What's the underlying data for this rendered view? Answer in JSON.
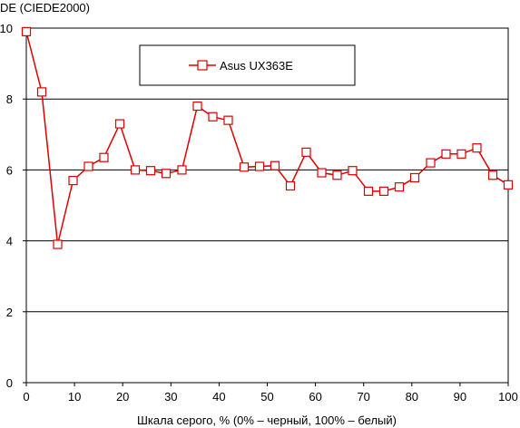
{
  "chart_data": {
    "type": "line",
    "title": "",
    "ylabel": "DE (CIEDE2000)",
    "xlabel": "Шкала серого, % (0% – черный, 100% – белый)",
    "xlim": [
      0,
      100
    ],
    "ylim": [
      0,
      10
    ],
    "xticks": [
      "0",
      "10",
      "20",
      "30",
      "40",
      "50",
      "60",
      "70",
      "80",
      "90",
      "100"
    ],
    "yticks": [
      "0",
      "2",
      "4",
      "6",
      "8",
      "10"
    ],
    "grid": "horizontal",
    "legend_position": "top-center",
    "series": [
      {
        "name": "Asus UX363E",
        "color": "#dd0000",
        "marker": "square",
        "x": [
          0,
          3.2,
          6.5,
          9.7,
          12.9,
          16.1,
          19.4,
          22.6,
          25.8,
          29.0,
          32.3,
          35.5,
          38.7,
          41.9,
          45.2,
          48.4,
          51.6,
          54.8,
          58.1,
          61.3,
          64.5,
          67.7,
          71.0,
          74.2,
          77.4,
          80.6,
          83.9,
          87.1,
          90.3,
          93.5,
          96.8,
          100
        ],
        "y": [
          9.9,
          8.2,
          3.9,
          5.7,
          6.1,
          6.35,
          7.3,
          6.0,
          5.98,
          5.9,
          6.0,
          7.8,
          7.5,
          7.4,
          6.08,
          6.1,
          6.12,
          5.55,
          6.5,
          5.92,
          5.85,
          5.98,
          5.4,
          5.4,
          5.52,
          5.78,
          6.2,
          6.45,
          6.45,
          6.62,
          5.85,
          5.58
        ]
      }
    ]
  }
}
